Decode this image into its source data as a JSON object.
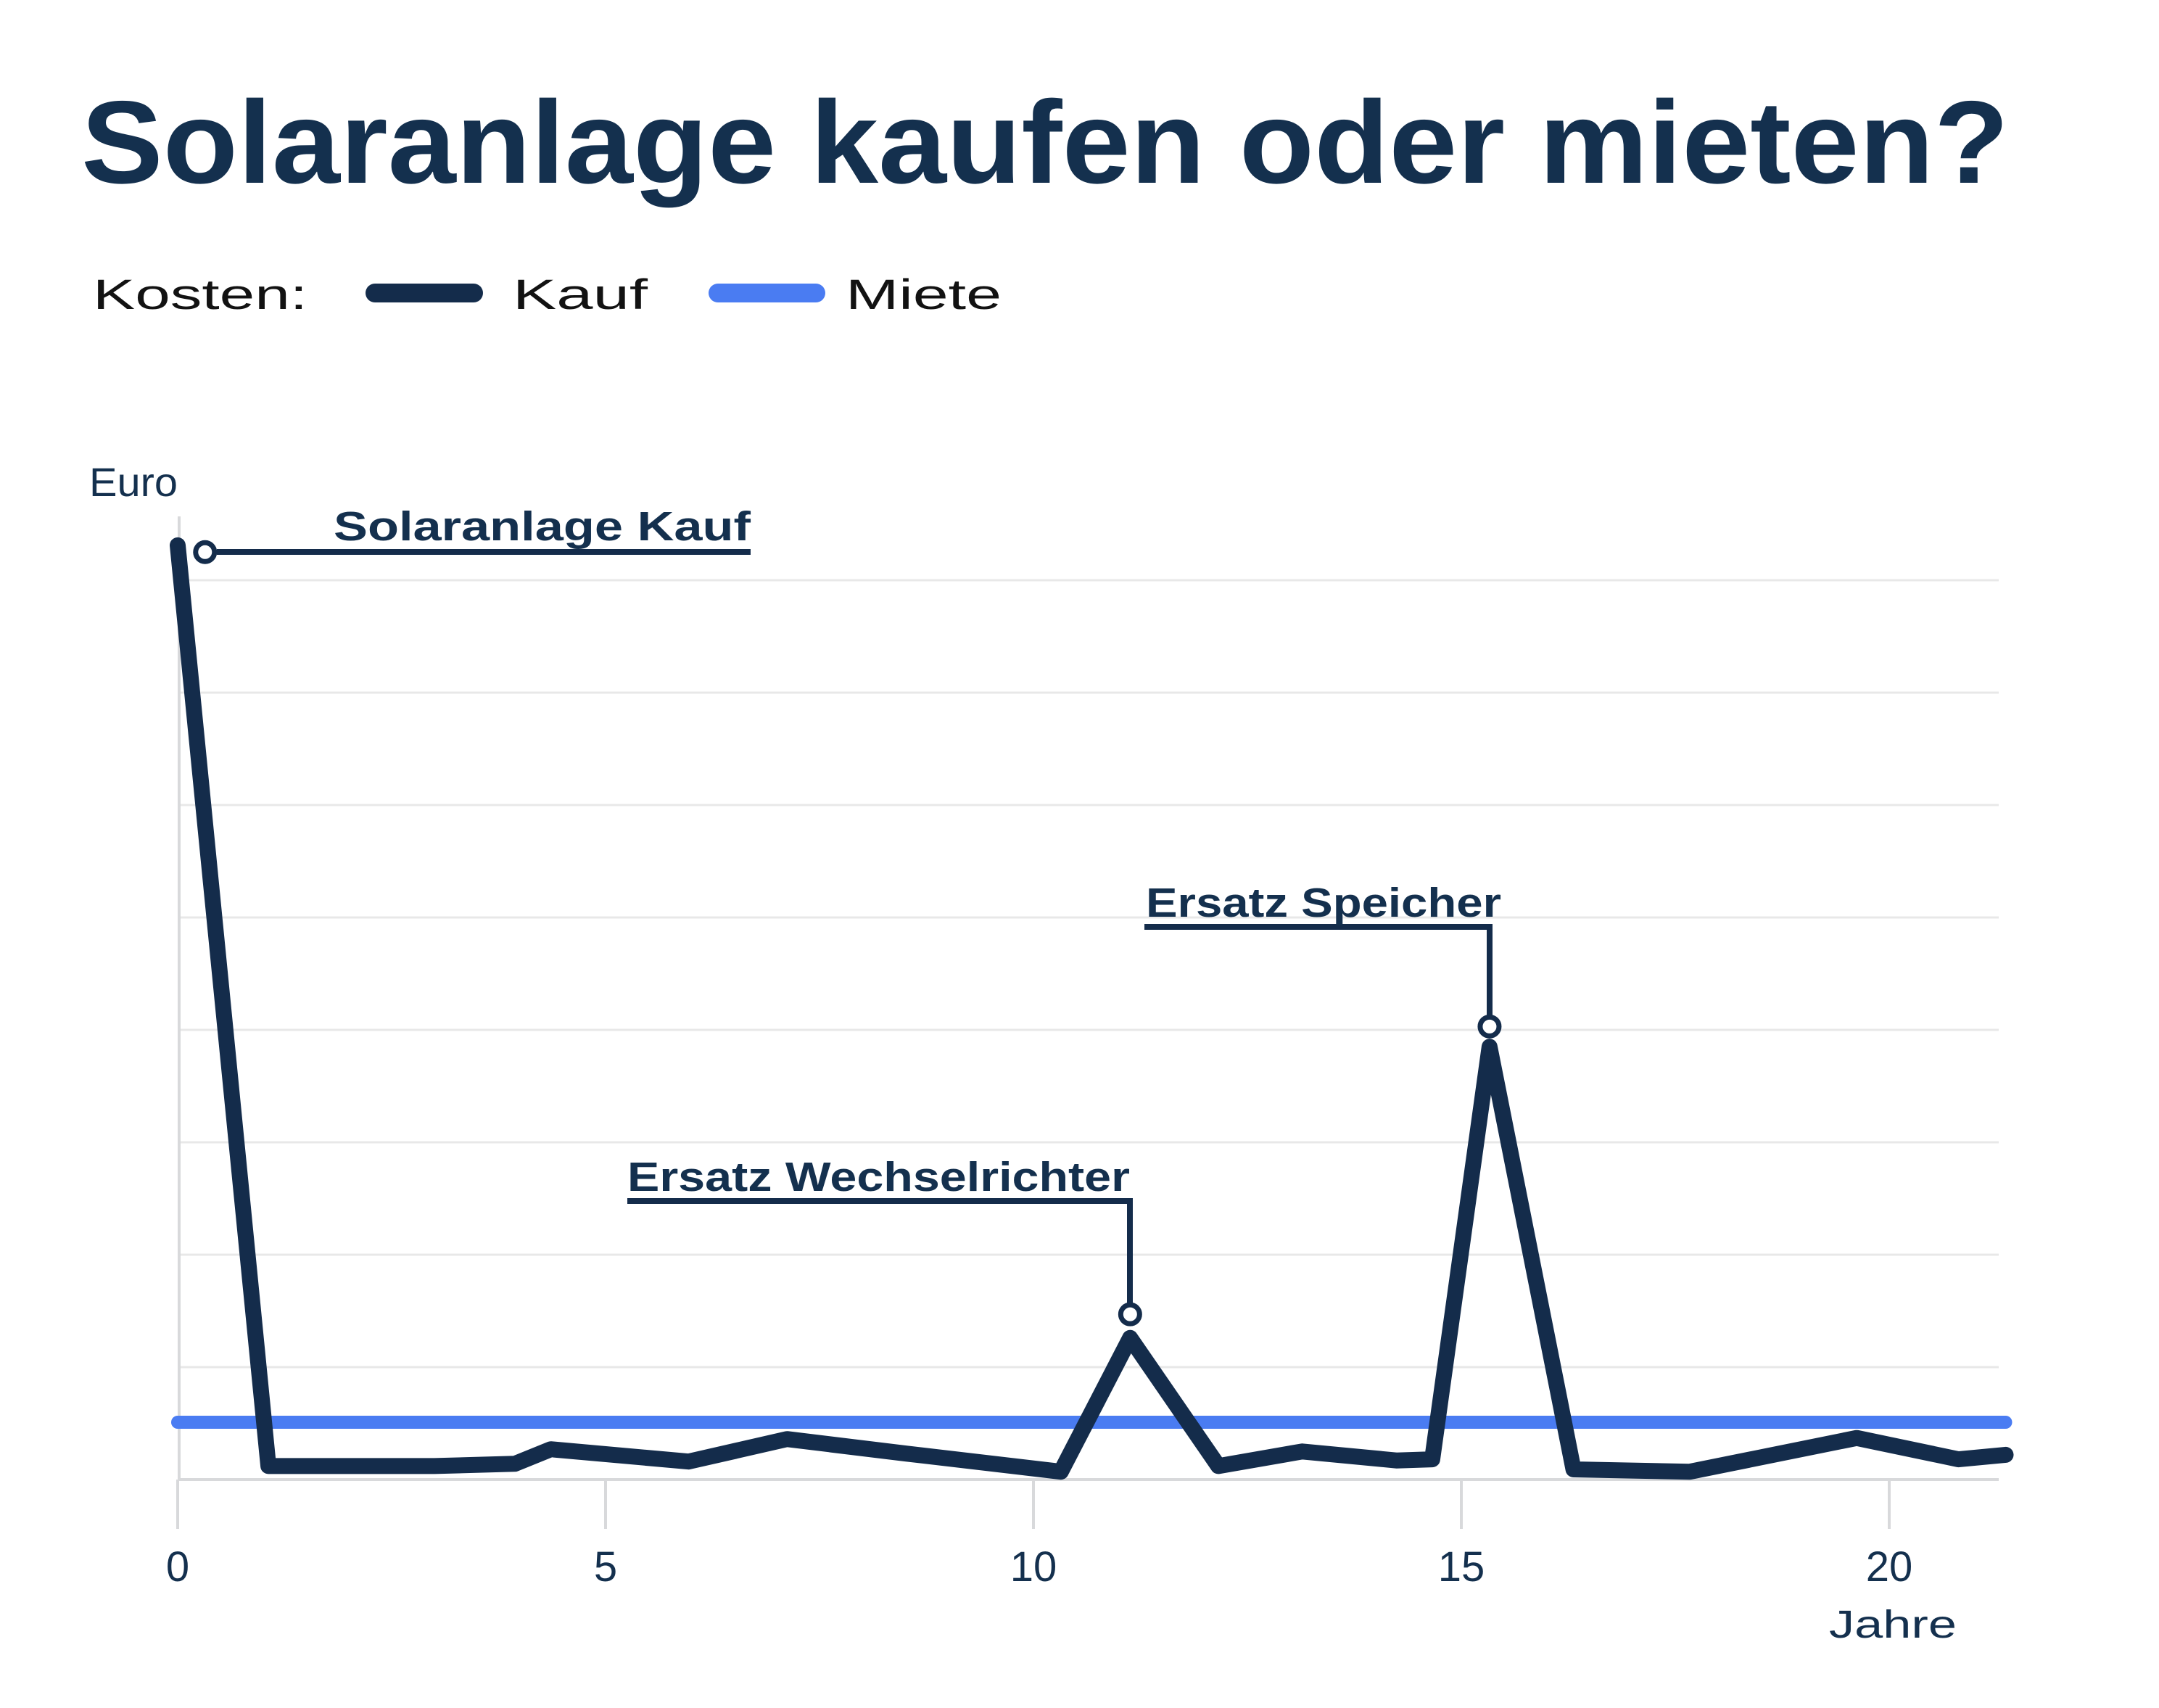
{
  "title": "Solaranlage kaufen oder mieten?",
  "legend": {
    "label": "Kosten:",
    "items": [
      {
        "name": "Kauf",
        "color": "#142c4b"
      },
      {
        "name": "Miete",
        "color": "#4a7cf2"
      }
    ]
  },
  "axes": {
    "y_label": "Euro",
    "x_label": "Jahre"
  },
  "annotations": {
    "purchase": "Solaranlage Kauf",
    "inverter": "Ersatz Wechselrichter",
    "storage": "Ersatz Speicher"
  },
  "colors": {
    "navy": "#142c4b",
    "blue": "#4a7cf2",
    "grid": "#e8e8e8",
    "axis": "#d8d9db",
    "dark_text": "#14304e",
    "legend_text": "#121212"
  },
  "chart_data": {
    "type": "line",
    "title": "Solaranlage kaufen oder mieten?",
    "xlabel": "Jahre",
    "ylabel": "Euro",
    "x_range": [
      0,
      21.4
    ],
    "x_ticks": [
      0,
      5,
      10,
      15,
      20
    ],
    "y_axis_numeric_labels_shown": false,
    "y_unit_note": "y-axis has no numeric labels; values given in gridline units (1 unit = one horizontal gridline)",
    "grid": "horizontal gridlines only, 8 above baseline",
    "legend_position": "top-left, outside plot",
    "series": [
      {
        "name": "Kauf",
        "color": "#142c4b",
        "points": [
          [
            0,
            8.31
          ],
          [
            1.06,
            0.12
          ],
          [
            3.0,
            0.12
          ],
          [
            3.94,
            0.14
          ],
          [
            4.36,
            0.27
          ],
          [
            5.97,
            0.16
          ],
          [
            7.12,
            0.36
          ],
          [
            8.52,
            0.23
          ],
          [
            10.32,
            0.07
          ],
          [
            11.13,
            1.26
          ],
          [
            12.16,
            0.12
          ],
          [
            13.14,
            0.25
          ],
          [
            14.24,
            0.17
          ],
          [
            14.66,
            0.18
          ],
          [
            15.33,
            3.85
          ],
          [
            16.31,
            0.09
          ],
          [
            17.67,
            0.07
          ],
          [
            19.62,
            0.37
          ],
          [
            20.81,
            0.18
          ],
          [
            21.36,
            0.22
          ]
        ]
      },
      {
        "name": "Miete",
        "color": "#4a7cf2",
        "points": [
          [
            0,
            0.51
          ],
          [
            21.36,
            0.51
          ]
        ]
      }
    ],
    "annotation_markers": [
      {
        "label": "Solaranlage Kauf",
        "x": 0.32,
        "y": 8.25
      },
      {
        "label": "Ersatz Wechselrichter",
        "x": 11.13,
        "y": 1.47
      },
      {
        "label": "Ersatz Speicher",
        "x": 15.33,
        "y": 4.03
      }
    ]
  }
}
